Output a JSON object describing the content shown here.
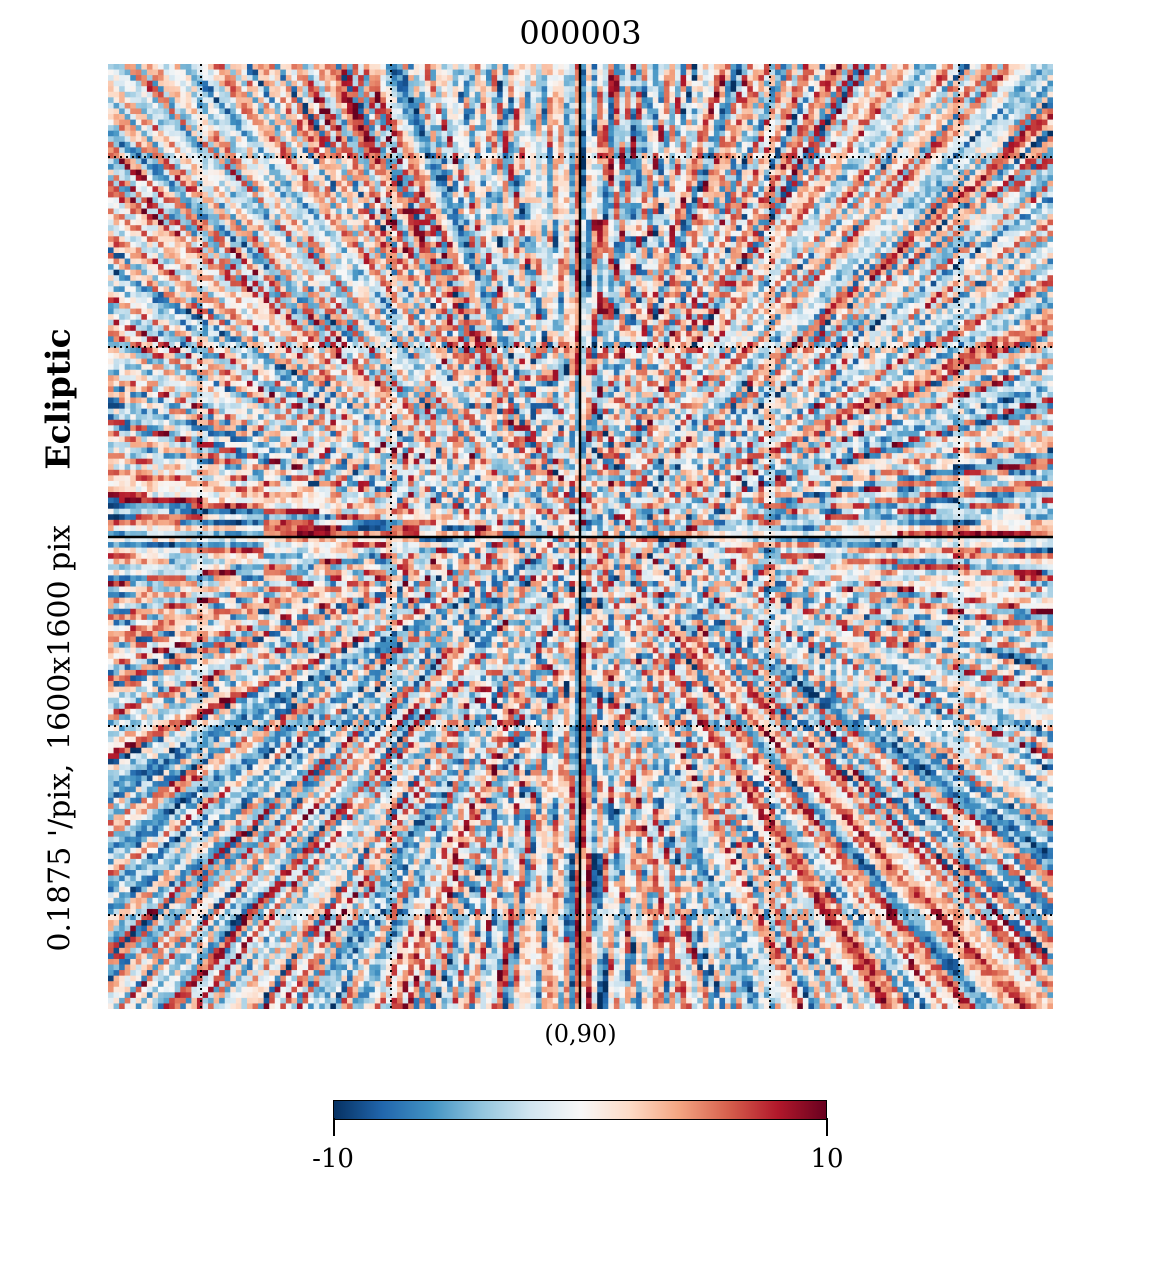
{
  "title": "000003",
  "center_label": "(0,90)",
  "side_label": {
    "resolution": "0.1875 '/pix,",
    "size": "1600x1600 pix",
    "coord_system": "Ecliptic"
  },
  "colorbar": {
    "min_label": "-10",
    "max_label": "10",
    "stops": [
      "#053061",
      "#2166ac",
      "#4393c3",
      "#92c5de",
      "#d1e5f0",
      "#f7f7f7",
      "#fddbc7",
      "#f4a582",
      "#d6604d",
      "#b2182b",
      "#67001f"
    ]
  },
  "chart_data": {
    "type": "heatmap",
    "title": "000003",
    "projection": "gnomonic",
    "center": "(0,90)",
    "coord": "Ecliptic",
    "resolution_arcmin_per_pix": 0.1875,
    "xsize": 1600,
    "ysize": 1600,
    "colormap": "RdBu_r",
    "vmin": -10,
    "vmax": 10,
    "graticule": true
  }
}
